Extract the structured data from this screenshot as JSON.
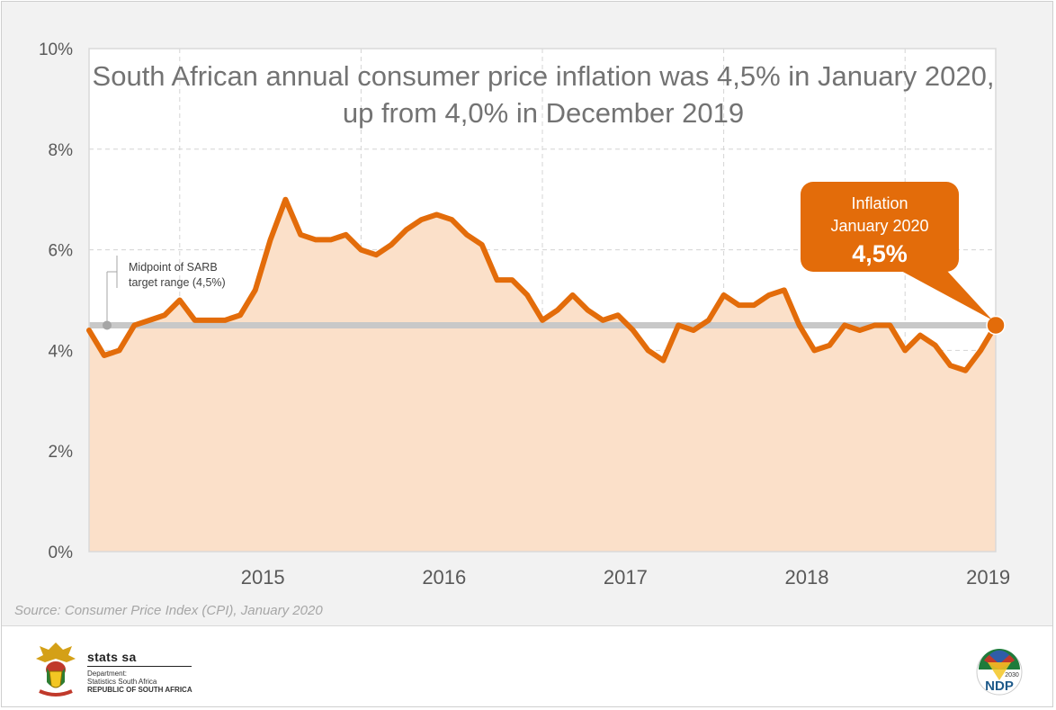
{
  "chart_data": {
    "type": "area",
    "title": "South African annual consumer price inflation was 4,5% in January 2020, up from 4,0% in December 2019",
    "xlabel": "",
    "ylabel": "",
    "ylim": [
      0,
      10
    ],
    "y_ticks": [
      "0%",
      "2%",
      "4%",
      "6%",
      "8%",
      "10%"
    ],
    "year_labels": [
      "2015",
      "2016",
      "2017",
      "2018",
      "2019"
    ],
    "series": [
      {
        "values": [
          4.4,
          3.9,
          4.0,
          4.5,
          4.6,
          4.7,
          5.0,
          4.6,
          4.6,
          4.6,
          4.7,
          5.2,
          6.2,
          7.0,
          6.3,
          6.2,
          6.2,
          6.3,
          6.0,
          5.9,
          6.1,
          6.4,
          6.6,
          6.7,
          6.6,
          6.3,
          6.1,
          5.4,
          5.4,
          5.1,
          4.6,
          4.8,
          5.1,
          4.8,
          4.6,
          4.7,
          4.4,
          4.0,
          3.8,
          4.5,
          4.4,
          4.6,
          5.1,
          4.9,
          4.9,
          5.1,
          5.2,
          4.5,
          4.0,
          4.1,
          4.5,
          4.4,
          4.5,
          4.5,
          4.0,
          4.3,
          4.1,
          3.7,
          3.6,
          4.0,
          4.5
        ]
      }
    ],
    "reference_line": {
      "value": 4.5,
      "label_line1": "Midpoint of SARB",
      "label_line2": "target range (4,5%)"
    },
    "callout": {
      "line1": "Inflation",
      "line2": "January 2020",
      "value": "4,5%"
    },
    "grid": true,
    "colors": {
      "line": "#e36c0a",
      "fill": "#fbe0c9",
      "reference": "#c8c8c8",
      "callout_bg": "#e36c0a"
    }
  },
  "source": "Source: Consumer Price Index (CPI), January 2020",
  "footer": {
    "org_name": "stats sa",
    "dept_line1": "Department:",
    "dept_line2": "Statistics South Africa",
    "dept_line3": "REPUBLIC OF SOUTH AFRICA",
    "ndp_text": "NDP",
    "ndp_year": "2030"
  }
}
